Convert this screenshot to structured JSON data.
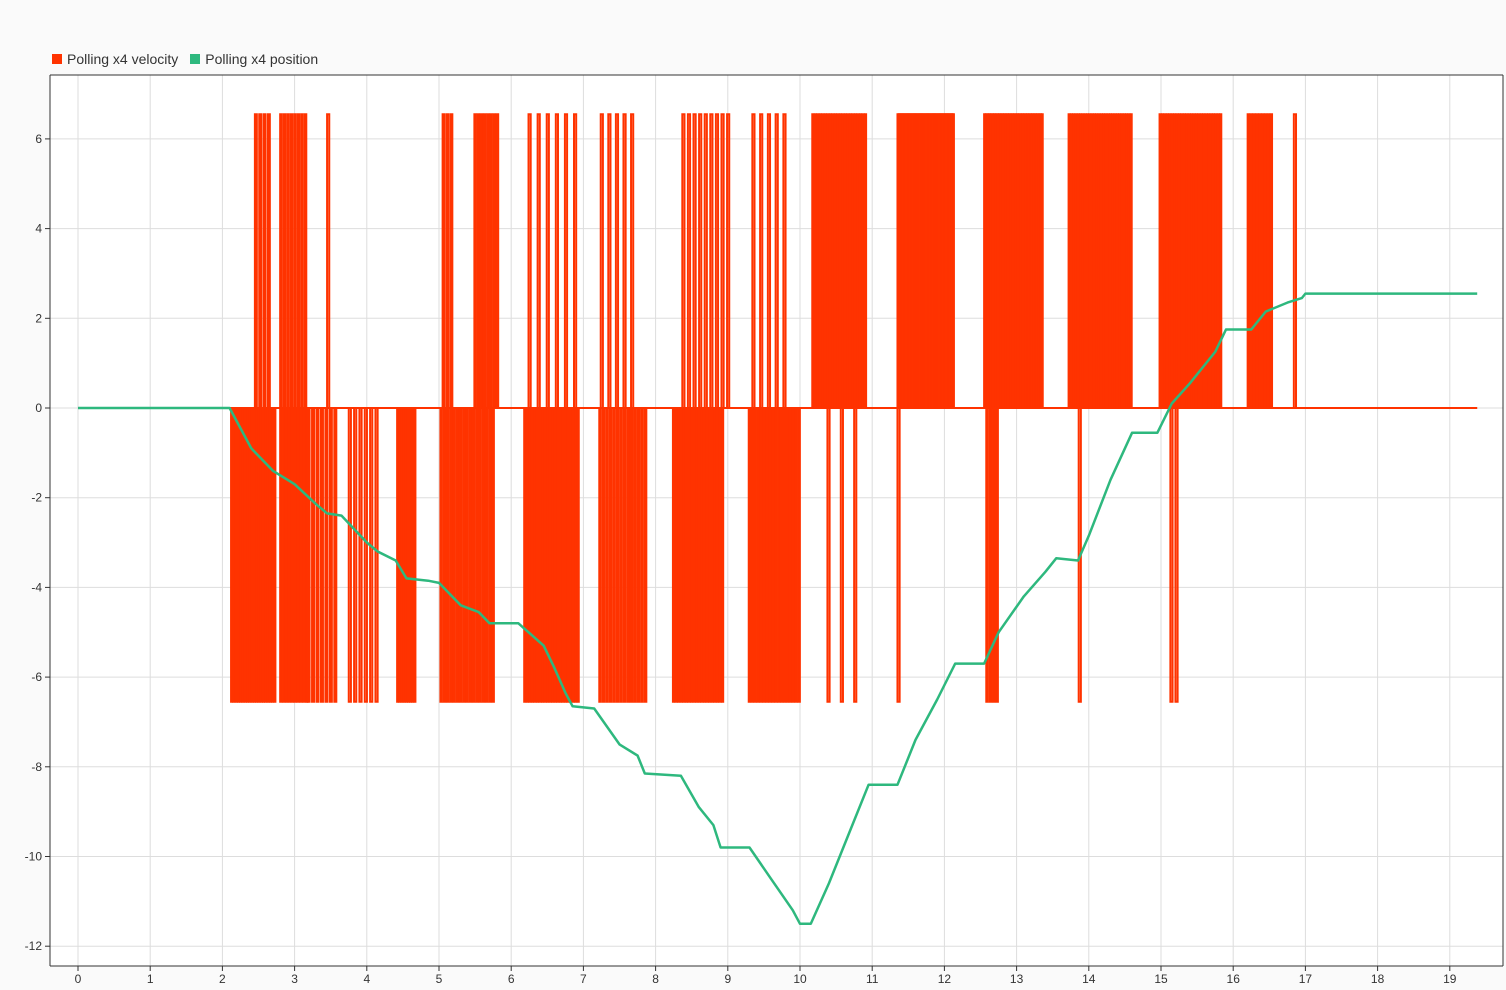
{
  "chart_data": {
    "type": "line",
    "title": "",
    "xlabel": "",
    "ylabel": "",
    "xlim": [
      0,
      19.4
    ],
    "ylim": [
      -12.5,
      7.4
    ],
    "x_ticks": [
      0,
      1,
      2,
      3,
      4,
      5,
      6,
      7,
      8,
      9,
      10,
      11,
      12,
      13,
      14,
      15,
      16,
      17,
      18,
      19
    ],
    "y_ticks": [
      6,
      4,
      2,
      0,
      -2,
      -4,
      -6,
      -8,
      -10,
      -12
    ],
    "grid": true,
    "legend_position": "top-left",
    "series": [
      {
        "name": "Polling x4 velocity",
        "color": "#ff3300",
        "kind": "step-pulses",
        "high": 6.55,
        "low": -6.55,
        "baseline": 0,
        "x_end": 19.38,
        "pulses": [
          {
            "start": 2.12,
            "end": 2.72,
            "value": -6.55,
            "count": 20
          },
          {
            "start": 2.45,
            "end": 2.63,
            "value": 6.55,
            "count": 4
          },
          {
            "start": 2.8,
            "end": 3.16,
            "value": -6.55,
            "count": 10
          },
          {
            "start": 2.8,
            "end": 3.14,
            "value": 6.55,
            "count": 8
          },
          {
            "start": 3.18,
            "end": 3.55,
            "value": -6.55,
            "count": 7
          },
          {
            "start": 3.45,
            "end": 3.5,
            "value": 6.55,
            "count": 1
          },
          {
            "start": 3.75,
            "end": 4.12,
            "value": -6.55,
            "count": 6
          },
          {
            "start": 4.42,
            "end": 4.66,
            "value": -6.55,
            "count": 9
          },
          {
            "start": 5.02,
            "end": 5.74,
            "value": -6.55,
            "count": 17
          },
          {
            "start": 5.05,
            "end": 5.16,
            "value": 6.55,
            "count": 3
          },
          {
            "start": 5.49,
            "end": 5.8,
            "value": 6.55,
            "count": 8
          },
          {
            "start": 6.18,
            "end": 6.92,
            "value": -6.55,
            "count": 22
          },
          {
            "start": 6.24,
            "end": 6.87,
            "value": 6.55,
            "count": 6
          },
          {
            "start": 7.22,
            "end": 7.56,
            "value": -6.55,
            "count": 8
          },
          {
            "start": 7.24,
            "end": 7.66,
            "value": 6.55,
            "count": 5
          },
          {
            "start": 7.61,
            "end": 7.85,
            "value": -6.55,
            "count": 6
          },
          {
            "start": 8.24,
            "end": 8.92,
            "value": -6.55,
            "count": 20
          },
          {
            "start": 8.37,
            "end": 8.99,
            "value": 6.55,
            "count": 9
          },
          {
            "start": 9.29,
            "end": 9.98,
            "value": -6.55,
            "count": 18
          },
          {
            "start": 9.34,
            "end": 9.77,
            "value": 6.55,
            "count": 5
          },
          {
            "start": 10.17,
            "end": 10.9,
            "value": 6.55,
            "count": 22
          },
          {
            "start": 10.38,
            "end": 10.75,
            "value": -6.55,
            "count": 3
          },
          {
            "start": 11.35,
            "end": 11.45,
            "value": -6.55,
            "count": 1
          },
          {
            "start": 11.35,
            "end": 12.12,
            "value": 6.55,
            "count": 48
          },
          {
            "start": 12.55,
            "end": 13.35,
            "value": 6.55,
            "count": 36
          },
          {
            "start": 12.58,
            "end": 12.72,
            "value": -6.55,
            "count": 4
          },
          {
            "start": 13.72,
            "end": 14.58,
            "value": 6.55,
            "count": 28
          },
          {
            "start": 13.86,
            "end": 13.9,
            "value": -6.55,
            "count": 1
          },
          {
            "start": 14.98,
            "end": 15.82,
            "value": 6.55,
            "count": 26
          },
          {
            "start": 15.13,
            "end": 15.2,
            "value": -6.55,
            "count": 2
          },
          {
            "start": 16.2,
            "end": 16.52,
            "value": 6.55,
            "count": 9
          },
          {
            "start": 16.84,
            "end": 16.89,
            "value": 6.55,
            "count": 1
          }
        ]
      },
      {
        "name": "Polling x4 position",
        "color": "#2eb87e",
        "kind": "line",
        "points": [
          [
            0,
            0
          ],
          [
            2.1,
            0
          ],
          [
            2.4,
            -0.9
          ],
          [
            2.7,
            -1.4
          ],
          [
            3.0,
            -1.7
          ],
          [
            3.3,
            -2.15
          ],
          [
            3.45,
            -2.35
          ],
          [
            3.65,
            -2.4
          ],
          [
            4.0,
            -3.0
          ],
          [
            4.15,
            -3.2
          ],
          [
            4.4,
            -3.4
          ],
          [
            4.55,
            -3.8
          ],
          [
            4.85,
            -3.85
          ],
          [
            5.0,
            -3.9
          ],
          [
            5.3,
            -4.4
          ],
          [
            5.55,
            -4.55
          ],
          [
            5.7,
            -4.8
          ],
          [
            6.1,
            -4.8
          ],
          [
            6.45,
            -5.3
          ],
          [
            6.6,
            -5.8
          ],
          [
            6.75,
            -6.35
          ],
          [
            6.85,
            -6.65
          ],
          [
            7.15,
            -6.7
          ],
          [
            7.5,
            -7.5
          ],
          [
            7.75,
            -7.75
          ],
          [
            7.85,
            -8.15
          ],
          [
            8.35,
            -8.2
          ],
          [
            8.6,
            -8.9
          ],
          [
            8.8,
            -9.3
          ],
          [
            8.9,
            -9.8
          ],
          [
            9.3,
            -9.8
          ],
          [
            9.6,
            -10.5
          ],
          [
            9.9,
            -11.2
          ],
          [
            10.0,
            -11.5
          ],
          [
            10.15,
            -11.5
          ],
          [
            10.4,
            -10.6
          ],
          [
            10.7,
            -9.4
          ],
          [
            10.95,
            -8.4
          ],
          [
            11.35,
            -8.4
          ],
          [
            11.6,
            -7.4
          ],
          [
            11.9,
            -6.5
          ],
          [
            12.15,
            -5.7
          ],
          [
            12.55,
            -5.7
          ],
          [
            12.75,
            -5.0
          ],
          [
            13.1,
            -4.2
          ],
          [
            13.4,
            -3.65
          ],
          [
            13.55,
            -3.35
          ],
          [
            13.85,
            -3.4
          ],
          [
            14.0,
            -2.85
          ],
          [
            14.3,
            -1.6
          ],
          [
            14.6,
            -0.55
          ],
          [
            14.95,
            -0.55
          ],
          [
            15.15,
            0.1
          ],
          [
            15.4,
            0.55
          ],
          [
            15.75,
            1.25
          ],
          [
            15.9,
            1.75
          ],
          [
            16.25,
            1.75
          ],
          [
            16.45,
            2.15
          ],
          [
            16.75,
            2.35
          ],
          [
            16.95,
            2.45
          ],
          [
            17.0,
            2.55
          ],
          [
            19.38,
            2.55
          ]
        ]
      }
    ]
  }
}
